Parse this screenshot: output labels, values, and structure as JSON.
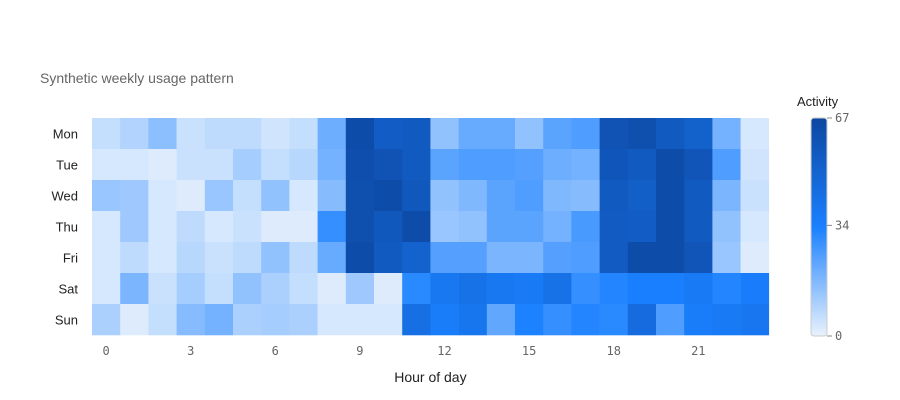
{
  "chart_data": {
    "type": "heatmap",
    "title": "Synthetic weekly usage pattern",
    "xlabel": "Hour of day",
    "ylabel": "",
    "x": [
      0,
      1,
      2,
      3,
      4,
      5,
      6,
      7,
      8,
      9,
      10,
      11,
      12,
      13,
      14,
      15,
      16,
      17,
      18,
      19,
      20,
      21,
      22,
      23
    ],
    "x_ticks": [
      0,
      3,
      6,
      9,
      12,
      15,
      18,
      21
    ],
    "y": [
      "Mon",
      "Tue",
      "Wed",
      "Thu",
      "Fri",
      "Sat",
      "Sun"
    ],
    "z": [
      [
        6,
        9,
        15,
        5,
        7,
        7,
        4,
        6,
        20,
        64,
        54,
        56,
        14,
        21,
        21,
        14,
        23,
        25,
        60,
        62,
        56,
        52,
        19,
        3
      ],
      [
        3,
        3,
        2,
        5,
        5,
        11,
        6,
        8,
        19,
        63,
        60,
        56,
        23,
        25,
        25,
        24,
        20,
        19,
        58,
        56,
        64,
        59,
        25,
        4
      ],
      [
        13,
        12,
        3,
        2,
        13,
        6,
        14,
        3,
        16,
        62,
        64,
        57,
        14,
        17,
        23,
        25,
        17,
        16,
        56,
        53,
        64,
        56,
        18,
        5
      ],
      [
        3,
        12,
        3,
        7,
        3,
        5,
        2,
        2,
        29,
        62,
        57,
        64,
        13,
        14,
        23,
        23,
        19,
        26,
        55,
        54,
        64,
        56,
        14,
        3
      ],
      [
        3,
        7,
        3,
        8,
        5,
        7,
        14,
        7,
        21,
        64,
        56,
        51,
        24,
        24,
        18,
        18,
        24,
        25,
        55,
        64,
        64,
        59,
        13,
        2
      ],
      [
        3,
        18,
        5,
        11,
        6,
        14,
        10,
        6,
        2,
        12,
        2,
        31,
        38,
        42,
        38,
        37,
        42,
        29,
        32,
        34,
        34,
        37,
        32,
        35
      ],
      [
        10,
        2,
        6,
        16,
        19,
        10,
        11,
        10,
        3,
        3,
        3,
        43,
        36,
        40,
        22,
        33,
        29,
        32,
        31,
        45,
        25,
        36,
        37,
        39
      ]
    ],
    "zrange": [
      0,
      67
    ],
    "colorbar": {
      "title": "Activity",
      "ticks": [
        0,
        34,
        67
      ],
      "colors": [
        "#e9f2fd",
        "#1a80ff",
        "#0d47a1"
      ]
    },
    "grid": false
  }
}
